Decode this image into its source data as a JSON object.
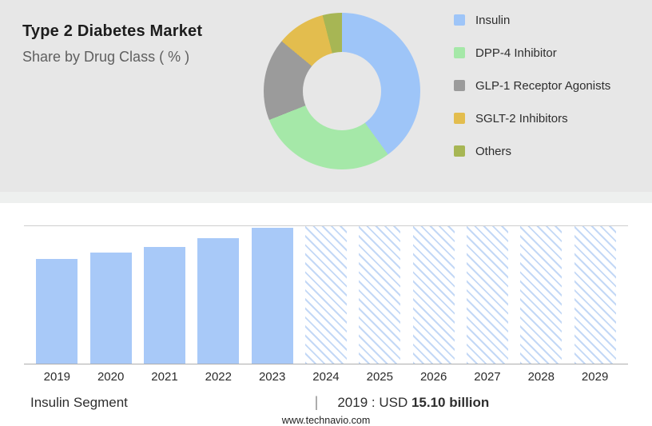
{
  "header": {
    "title": "Type 2 Diabetes Market",
    "subtitle": "Share by Drug Class ( % )"
  },
  "chart_data": [
    {
      "type": "pie",
      "donut": true,
      "title": "Share by Drug Class ( % )",
      "labels": [
        "Insulin",
        "DPP-4 Inhibitor",
        "GLP-1 Receptor Agonists",
        "SGLT-2 Inhibitors",
        "Others"
      ],
      "values": [
        40,
        29,
        17,
        10,
        4
      ],
      "colors": [
        "#9ec5f8",
        "#a5e8a8",
        "#9b9b9b",
        "#e3bd4e",
        "#a7b654"
      ],
      "legend_position": "right"
    },
    {
      "type": "bar",
      "categories": [
        "2019",
        "2020",
        "2021",
        "2022",
        "2023",
        "2024",
        "2025",
        "2026",
        "2027",
        "2028",
        "2029"
      ],
      "series": [
        {
          "name": "Insulin Segment",
          "values": [
            76,
            81,
            85,
            91,
            99,
            100,
            100,
            100,
            100,
            100,
            100
          ]
        }
      ],
      "forecast_start": "2024",
      "bar_color": "#a8c9f8",
      "forecast_hatch_color": "#c3d8f6",
      "ylim": [
        0,
        100
      ],
      "grid": false,
      "value_axis_labels": false
    }
  ],
  "caption": {
    "segment_label": "Insulin Segment",
    "separator": "|",
    "value_prefix": "2019 : USD",
    "value_bold": "15.10 billion"
  },
  "footer": {
    "website": "www.technavio.com"
  }
}
